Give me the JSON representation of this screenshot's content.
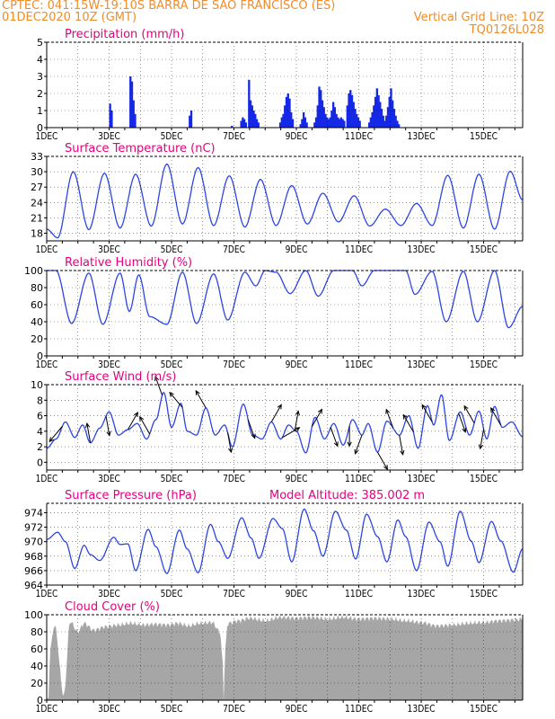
{
  "header": {
    "line1_left": "CPTEC:  041:15W-19:10S  BARRA DE SAO FRANCISCO (ES)",
    "line2_left": "01DEC2020 10Z (GMT)",
    "line2_right": "Vertical Grid Line: 10Z",
    "line3_right": "TQ0126L028"
  },
  "colors": {
    "header_text": "#f08c2a",
    "panel_title": "#e6007e",
    "series_line": "#2b45e6",
    "precip_bar": "#1428e6",
    "cloud_fill": "#a6a6a6",
    "wind_arrow": "#000000"
  },
  "chart_data": [
    {
      "type": "bar",
      "title": "Precipitation (mm/h)",
      "ylim": [
        0,
        5
      ],
      "yticks": [
        "0",
        "1",
        "2",
        "3",
        "4",
        "5"
      ],
      "x_tick_labels": [
        "1DEC",
        "3DEC",
        "5DEC",
        "7DEC",
        "9DEC",
        "11DEC",
        "13DEC",
        "15DEC"
      ],
      "x_range_days": [
        0,
        15.25
      ],
      "grid": "dashed",
      "bars": [
        [
          2.0,
          1.4
        ],
        [
          2.05,
          1.0
        ],
        [
          2.65,
          3.0
        ],
        [
          2.7,
          2.7
        ],
        [
          2.75,
          1.6
        ],
        [
          2.8,
          0.8
        ],
        [
          4.55,
          0.7
        ],
        [
          4.6,
          1.0
        ],
        [
          5.9,
          0.1
        ],
        [
          6.2,
          0.4
        ],
        [
          6.25,
          0.6
        ],
        [
          6.3,
          0.5
        ],
        [
          6.35,
          0.3
        ],
        [
          6.45,
          2.8
        ],
        [
          6.5,
          1.6
        ],
        [
          6.55,
          1.3
        ],
        [
          6.6,
          1.0
        ],
        [
          6.65,
          0.8
        ],
        [
          6.7,
          0.5
        ],
        [
          6.75,
          0.3
        ],
        [
          7.45,
          0.3
        ],
        [
          7.5,
          0.6
        ],
        [
          7.55,
          0.8
        ],
        [
          7.6,
          1.3
        ],
        [
          7.65,
          1.8
        ],
        [
          7.7,
          2.0
        ],
        [
          7.75,
          1.7
        ],
        [
          7.8,
          0.9
        ],
        [
          7.85,
          0.5
        ],
        [
          8.1,
          0.2
        ],
        [
          8.15,
          0.5
        ],
        [
          8.2,
          0.9
        ],
        [
          8.25,
          0.6
        ],
        [
          8.3,
          0.3
        ],
        [
          8.55,
          0.3
        ],
        [
          8.6,
          0.6
        ],
        [
          8.65,
          1.3
        ],
        [
          8.7,
          2.4
        ],
        [
          8.75,
          2.2
        ],
        [
          8.8,
          1.6
        ],
        [
          8.85,
          1.2
        ],
        [
          8.9,
          0.8
        ],
        [
          8.95,
          0.6
        ],
        [
          9.0,
          0.5
        ],
        [
          9.05,
          0.6
        ],
        [
          9.1,
          1.0
        ],
        [
          9.15,
          1.5
        ],
        [
          9.2,
          1.2
        ],
        [
          9.25,
          0.8
        ],
        [
          9.3,
          0.6
        ],
        [
          9.35,
          0.5
        ],
        [
          9.4,
          0.6
        ],
        [
          9.45,
          0.5
        ],
        [
          9.5,
          0.4
        ],
        [
          9.6,
          1.3
        ],
        [
          9.65,
          2.0
        ],
        [
          9.7,
          2.2
        ],
        [
          9.75,
          1.9
        ],
        [
          9.8,
          1.5
        ],
        [
          9.85,
          1.1
        ],
        [
          9.9,
          0.8
        ],
        [
          9.95,
          0.6
        ],
        [
          10.0,
          0.4
        ],
        [
          10.3,
          0.3
        ],
        [
          10.35,
          0.6
        ],
        [
          10.4,
          0.9
        ],
        [
          10.45,
          1.3
        ],
        [
          10.5,
          1.8
        ],
        [
          10.55,
          2.3
        ],
        [
          10.6,
          1.9
        ],
        [
          10.65,
          1.5
        ],
        [
          10.7,
          1.1
        ],
        [
          10.75,
          0.7
        ],
        [
          10.8,
          0.4
        ],
        [
          10.85,
          0.7
        ],
        [
          10.9,
          1.2
        ],
        [
          10.95,
          1.8
        ],
        [
          11.0,
          2.3
        ],
        [
          11.05,
          1.6
        ],
        [
          11.1,
          1.1
        ],
        [
          11.15,
          0.7
        ],
        [
          11.2,
          0.4
        ],
        [
          11.25,
          0.2
        ]
      ]
    },
    {
      "type": "line",
      "title": "Surface Temperature (nC)",
      "ylim": [
        16.5,
        33
      ],
      "yticks": [
        "18",
        "21",
        "24",
        "27",
        "30",
        "33"
      ],
      "x_tick_labels": [
        "1DEC",
        "3DEC",
        "5DEC",
        "7DEC",
        "9DEC",
        "11DEC",
        "13DEC",
        "15DEC"
      ],
      "x_range_days": [
        0,
        15.25
      ],
      "extrema": [
        [
          0.0,
          18.8
        ],
        [
          0.35,
          17.1
        ],
        [
          0.85,
          30.0
        ],
        [
          1.35,
          18.7
        ],
        [
          1.85,
          29.7
        ],
        [
          2.35,
          19.0
        ],
        [
          2.85,
          29.5
        ],
        [
          3.35,
          19.4
        ],
        [
          3.85,
          31.5
        ],
        [
          4.35,
          19.8
        ],
        [
          4.85,
          30.8
        ],
        [
          5.35,
          19.5
        ],
        [
          5.85,
          29.2
        ],
        [
          6.35,
          19.2
        ],
        [
          6.85,
          28.5
        ],
        [
          7.35,
          19.5
        ],
        [
          7.85,
          27.3
        ],
        [
          8.35,
          19.8
        ],
        [
          8.85,
          25.8
        ],
        [
          9.35,
          20.2
        ],
        [
          9.85,
          25.3
        ],
        [
          10.35,
          19.4
        ],
        [
          10.85,
          22.7
        ],
        [
          11.35,
          19.5
        ],
        [
          11.85,
          23.8
        ],
        [
          12.35,
          19.5
        ],
        [
          12.85,
          29.3
        ],
        [
          13.35,
          19.0
        ],
        [
          13.85,
          29.5
        ],
        [
          14.35,
          18.8
        ],
        [
          14.85,
          30.1
        ],
        [
          15.25,
          24.5
        ]
      ]
    },
    {
      "type": "line",
      "title": "Relative Humidity (%)",
      "ylim": [
        0,
        100
      ],
      "yticks": [
        "0",
        "20",
        "40",
        "60",
        "80",
        "100"
      ],
      "x_tick_labels": [
        "1DEC",
        "3DEC",
        "5DEC",
        "7DEC",
        "9DEC",
        "11DEC",
        "13DEC",
        "15DEC"
      ],
      "x_range_days": [
        0,
        15.25
      ],
      "extrema": [
        [
          0.0,
          100
        ],
        [
          0.3,
          100
        ],
        [
          0.8,
          38
        ],
        [
          1.35,
          97
        ],
        [
          1.8,
          37
        ],
        [
          2.35,
          97
        ],
        [
          2.65,
          52
        ],
        [
          2.95,
          95
        ],
        [
          3.3,
          46
        ],
        [
          3.85,
          37
        ],
        [
          4.35,
          98
        ],
        [
          4.8,
          38
        ],
        [
          5.35,
          96
        ],
        [
          5.8,
          42
        ],
        [
          6.35,
          98
        ],
        [
          6.7,
          82
        ],
        [
          7.0,
          100
        ],
        [
          7.35,
          98
        ],
        [
          7.8,
          73
        ],
        [
          8.3,
          100
        ],
        [
          8.7,
          70
        ],
        [
          9.2,
          100
        ],
        [
          9.8,
          100
        ],
        [
          10.1,
          82
        ],
        [
          10.5,
          100
        ],
        [
          10.9,
          100
        ],
        [
          11.2,
          100
        ],
        [
          11.5,
          100
        ],
        [
          11.8,
          72
        ],
        [
          12.35,
          99
        ],
        [
          12.8,
          40
        ],
        [
          13.35,
          99
        ],
        [
          13.8,
          40
        ],
        [
          14.35,
          100
        ],
        [
          14.8,
          33
        ],
        [
          15.25,
          58
        ]
      ]
    },
    {
      "type": "line",
      "title": "Surface Wind (m/s)",
      "ylim": [
        -1,
        10
      ],
      "yticks": [
        "0",
        "2",
        "4",
        "6",
        "8",
        "10"
      ],
      "x_tick_labels": [
        "1DEC",
        "3DEC",
        "5DEC",
        "7DEC",
        "9DEC",
        "11DEC",
        "13DEC",
        "15DEC"
      ],
      "x_range_days": [
        0,
        15.25
      ],
      "extrema": [
        [
          0.0,
          1.8
        ],
        [
          0.3,
          3.0
        ],
        [
          0.6,
          5.2
        ],
        [
          0.9,
          3.2
        ],
        [
          1.15,
          4.8
        ],
        [
          1.4,
          2.5
        ],
        [
          1.7,
          4.4
        ],
        [
          2.0,
          6.5
        ],
        [
          2.3,
          3.5
        ],
        [
          2.6,
          4.2
        ],
        [
          2.9,
          5.0
        ],
        [
          3.2,
          3.0
        ],
        [
          3.5,
          5.5
        ],
        [
          3.75,
          9.0
        ],
        [
          4.0,
          4.5
        ],
        [
          4.3,
          7.6
        ],
        [
          4.5,
          4.0
        ],
        [
          4.8,
          3.5
        ],
        [
          5.1,
          7.0
        ],
        [
          5.4,
          3.5
        ],
        [
          5.7,
          4.8
        ],
        [
          5.95,
          2.0
        ],
        [
          6.3,
          7.5
        ],
        [
          6.6,
          3.5
        ],
        [
          6.9,
          3.0
        ],
        [
          7.2,
          5.2
        ],
        [
          7.5,
          3.0
        ],
        [
          7.75,
          4.8
        ],
        [
          8.0,
          4.0
        ],
        [
          8.3,
          1.2
        ],
        [
          8.6,
          5.8
        ],
        [
          8.9,
          3.0
        ],
        [
          9.2,
          5.0
        ],
        [
          9.5,
          2.2
        ],
        [
          9.8,
          5.5
        ],
        [
          10.1,
          3.5
        ],
        [
          10.3,
          5.0
        ],
        [
          10.6,
          1.3
        ],
        [
          10.9,
          5.3
        ],
        [
          11.3,
          3.5
        ],
        [
          11.6,
          6.0
        ],
        [
          11.9,
          1.8
        ],
        [
          12.2,
          7.3
        ],
        [
          12.4,
          4.8
        ],
        [
          12.65,
          8.7
        ],
        [
          12.9,
          2.8
        ],
        [
          13.25,
          6.5
        ],
        [
          13.55,
          3.5
        ],
        [
          13.85,
          6.6
        ],
        [
          14.1,
          3.0
        ],
        [
          14.35,
          7.2
        ],
        [
          14.6,
          4.5
        ],
        [
          14.9,
          5.2
        ],
        [
          15.25,
          3.3
        ]
      ],
      "arrows": [
        [
          0.5,
          130
        ],
        [
          1.4,
          260
        ],
        [
          1.9,
          80
        ],
        [
          2.6,
          300
        ],
        [
          3.3,
          240
        ],
        [
          3.7,
          250
        ],
        [
          4.35,
          230
        ],
        [
          5.1,
          240
        ],
        [
          5.8,
          80
        ],
        [
          6.45,
          70
        ],
        [
          7.2,
          300
        ],
        [
          7.55,
          330
        ],
        [
          7.95,
          280
        ],
        [
          8.5,
          300
        ],
        [
          9.1,
          70
        ],
        [
          9.7,
          90
        ],
        [
          10.1,
          110
        ],
        [
          10.6,
          60
        ],
        [
          11.1,
          250
        ],
        [
          11.3,
          80
        ],
        [
          11.75,
          240
        ],
        [
          12.35,
          240
        ],
        [
          13.2,
          70
        ],
        [
          13.7,
          240
        ],
        [
          14.0,
          100
        ],
        [
          14.55,
          240
        ]
      ]
    },
    {
      "type": "line",
      "title": "Surface Pressure (hPa)",
      "subtitle": "Model Altitude: 385.002  m",
      "ylim": [
        964,
        975.3
      ],
      "yticks": [
        "964",
        "966",
        "968",
        "970",
        "972",
        "974"
      ],
      "x_tick_labels": [
        "1DEC",
        "3DEC",
        "5DEC",
        "7DEC",
        "9DEC",
        "11DEC",
        "13DEC",
        "15DEC"
      ],
      "x_range_days": [
        0,
        15.25
      ],
      "extrema": [
        [
          0.0,
          970.3
        ],
        [
          0.35,
          971.3
        ],
        [
          0.6,
          970.0
        ],
        [
          0.9,
          966.3
        ],
        [
          1.2,
          969.5
        ],
        [
          1.4,
          968.2
        ],
        [
          1.7,
          967.4
        ],
        [
          2.15,
          970.6
        ],
        [
          2.35,
          969.6
        ],
        [
          2.6,
          969.7
        ],
        [
          2.85,
          966.0
        ],
        [
          3.25,
          971.7
        ],
        [
          3.5,
          969.3
        ],
        [
          3.85,
          965.6
        ],
        [
          4.25,
          971.6
        ],
        [
          4.5,
          969.0
        ],
        [
          4.85,
          965.7
        ],
        [
          5.25,
          972.4
        ],
        [
          5.5,
          970.0
        ],
        [
          5.8,
          967.7
        ],
        [
          6.25,
          973.3
        ],
        [
          6.55,
          970.5
        ],
        [
          6.8,
          967.7
        ],
        [
          7.25,
          973.2
        ],
        [
          7.55,
          971.8
        ],
        [
          7.85,
          967.2
        ],
        [
          8.25,
          974.5
        ],
        [
          8.55,
          971.5
        ],
        [
          8.85,
          968.0
        ],
        [
          9.25,
          974.2
        ],
        [
          9.6,
          971.6
        ],
        [
          9.9,
          967.6
        ],
        [
          10.25,
          973.8
        ],
        [
          10.6,
          970.7
        ],
        [
          10.9,
          967.2
        ],
        [
          11.25,
          973.0
        ],
        [
          11.5,
          970.7
        ],
        [
          11.85,
          966.0
        ],
        [
          12.25,
          972.7
        ],
        [
          12.6,
          970.0
        ],
        [
          12.85,
          966.6
        ],
        [
          13.25,
          974.2
        ],
        [
          13.6,
          970.1
        ],
        [
          13.85,
          967.1
        ],
        [
          14.25,
          972.8
        ],
        [
          14.55,
          970.1
        ],
        [
          14.95,
          965.8
        ],
        [
          15.25,
          969.0
        ]
      ]
    },
    {
      "type": "area",
      "title": "Cloud Cover (%)",
      "ylim": [
        0,
        100
      ],
      "yticks": [
        "0",
        "20",
        "40",
        "60",
        "80",
        "100"
      ],
      "x_tick_labels": [
        "1DEC",
        "3DEC",
        "5DEC",
        "7DEC",
        "9DEC",
        "11DEC",
        "13DEC",
        "15DEC"
      ],
      "x_range_days": [
        0,
        15.25
      ],
      "base_level": 96,
      "dips": [
        [
          0.05,
          0
        ],
        [
          0.12,
          62
        ],
        [
          0.25,
          88
        ],
        [
          0.55,
          5
        ],
        [
          0.75,
          92
        ],
        [
          1.0,
          80
        ],
        [
          1.2,
          90
        ],
        [
          1.5,
          82
        ],
        [
          1.9,
          86
        ],
        [
          2.3,
          88
        ],
        [
          2.7,
          90
        ],
        [
          3.1,
          88
        ],
        [
          3.5,
          89
        ],
        [
          3.9,
          88
        ],
        [
          4.2,
          90
        ],
        [
          4.55,
          87
        ],
        [
          4.9,
          90
        ],
        [
          5.3,
          91
        ],
        [
          5.55,
          80
        ],
        [
          5.63,
          50
        ],
        [
          5.67,
          0
        ],
        [
          5.72,
          60
        ],
        [
          5.8,
          90
        ],
        [
          6.15,
          93
        ],
        [
          6.5,
          96
        ],
        [
          7.0,
          93
        ],
        [
          7.5,
          97
        ],
        [
          8.0,
          96
        ],
        [
          8.5,
          97
        ],
        [
          9.0,
          95
        ],
        [
          9.5,
          97
        ],
        [
          10.0,
          95
        ],
        [
          10.5,
          96
        ],
        [
          11.0,
          95
        ],
        [
          11.5,
          93
        ],
        [
          12.0,
          91
        ],
        [
          12.5,
          87
        ],
        [
          13.0,
          88
        ],
        [
          13.5,
          90
        ],
        [
          14.0,
          91
        ],
        [
          14.5,
          93
        ],
        [
          15.0,
          94
        ],
        [
          15.25,
          95
        ]
      ]
    }
  ]
}
